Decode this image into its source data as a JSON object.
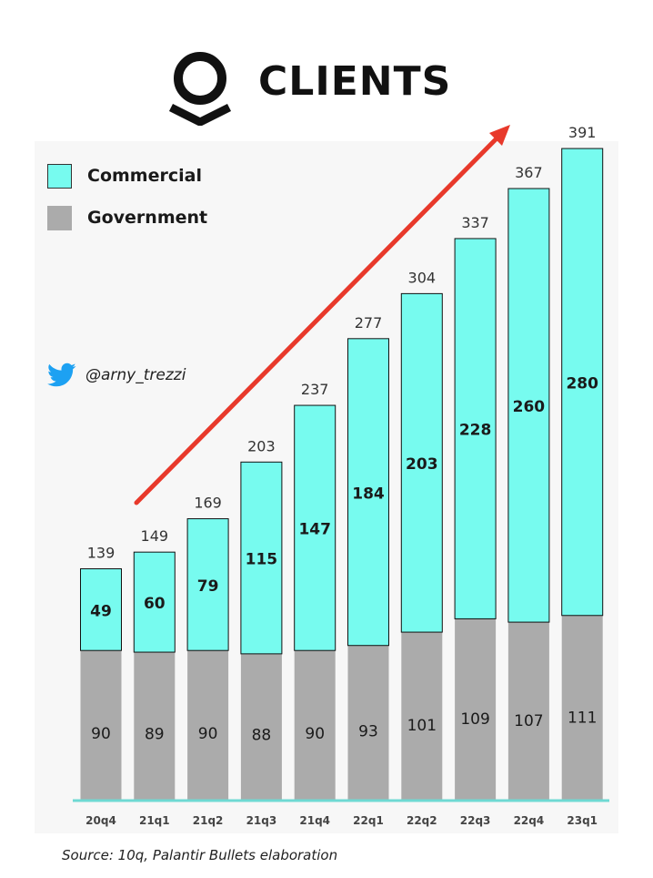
{
  "header": {
    "title": "CLIENTS",
    "logo_icon": "palantir-logo-icon"
  },
  "legend": [
    {
      "label": "Commercial",
      "color": "#77fbef"
    },
    {
      "label": "Government",
      "color": "#ababab"
    }
  ],
  "social": {
    "icon": "twitter-bird-icon",
    "handle": "@arny_trezzi",
    "color": "#1da1f2"
  },
  "source": "Source: 10q, Palantir Bullets elaboration",
  "colors": {
    "commercial": "#77fbef",
    "government": "#ababab",
    "trend_arrow": "#e8392b",
    "axis": "#6fd9d3"
  },
  "chart_data": {
    "type": "bar",
    "stacked": true,
    "title": "CLIENTS",
    "categories": [
      "20q4",
      "21q1",
      "21q2",
      "21q3",
      "21q4",
      "22q1",
      "22q2",
      "22q3",
      "22q4",
      "23q1"
    ],
    "series": [
      {
        "name": "Government",
        "values": [
          90,
          89,
          90,
          88,
          90,
          93,
          101,
          109,
          107,
          111
        ]
      },
      {
        "name": "Commercial",
        "values": [
          49,
          60,
          79,
          115,
          147,
          184,
          203,
          228,
          260,
          280
        ]
      }
    ],
    "totals": [
      139,
      149,
      169,
      203,
      237,
      277,
      304,
      337,
      367,
      391
    ],
    "ylim": [
      0,
      400
    ],
    "grid": false,
    "legend_position": "top-left",
    "annotations": [
      {
        "type": "trend-arrow",
        "direction": "up-right"
      }
    ]
  }
}
